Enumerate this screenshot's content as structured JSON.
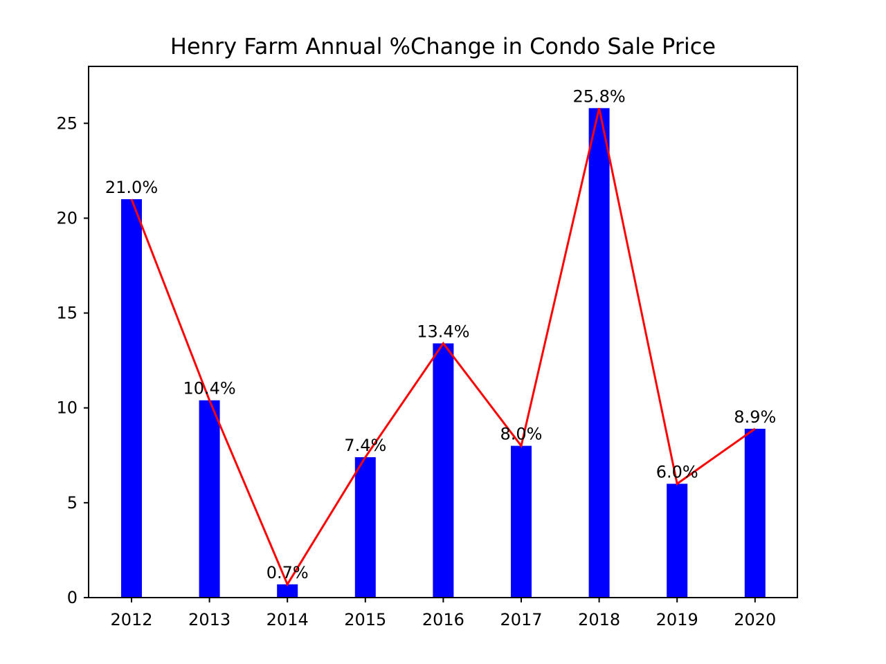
{
  "chart_data": {
    "type": "bar",
    "title": "Henry Farm Annual %Change in Condo Sale Price",
    "xlabel": "",
    "ylabel": "",
    "categories": [
      "2012",
      "2013",
      "2014",
      "2015",
      "2016",
      "2017",
      "2018",
      "2019",
      "2020"
    ],
    "values": [
      21.0,
      10.4,
      0.7,
      7.4,
      13.4,
      8.0,
      25.8,
      6.0,
      8.9
    ],
    "data_labels": [
      "21.0%",
      "10.4%",
      "0.7%",
      "7.4%",
      "13.4%",
      "8.0%",
      "25.8%",
      "6.0%",
      "8.9%"
    ],
    "overlay_line": {
      "type": "line",
      "values": [
        21.0,
        10.4,
        0.7,
        7.4,
        13.4,
        8.0,
        25.8,
        6.0,
        8.9
      ],
      "color": "#ff0000"
    },
    "ylim": [
      0,
      28
    ],
    "yticks": [
      0,
      5,
      10,
      15,
      20,
      25
    ],
    "grid": false,
    "legend": "none",
    "bar_color": "#0000ff"
  }
}
